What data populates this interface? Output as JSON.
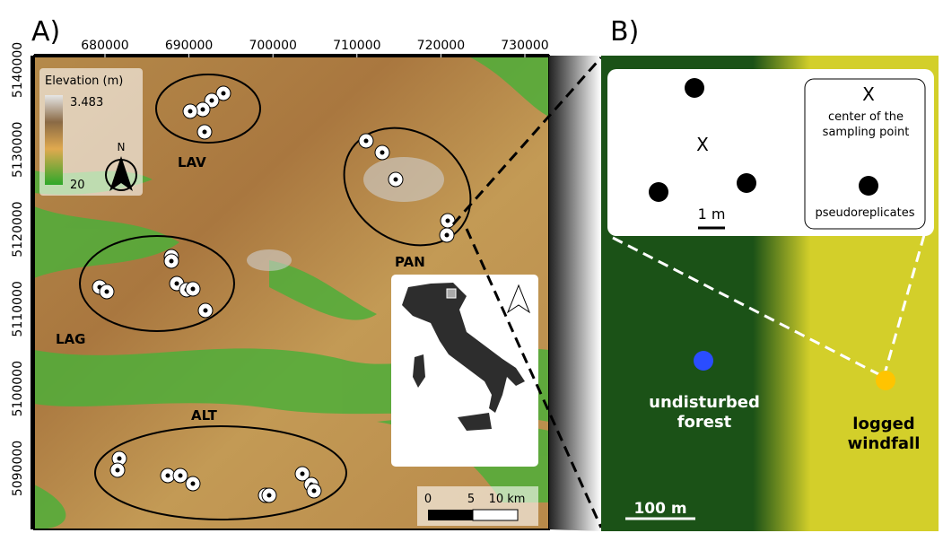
{
  "panel_a": {
    "label": "A)",
    "x_ticks": [
      "680000",
      "690000",
      "700000",
      "710000",
      "720000",
      "730000"
    ],
    "y_ticks": [
      "5140000",
      "5130000",
      "5120000",
      "5110000",
      "5100000",
      "5090000"
    ],
    "legend": {
      "title": "Elevation (m)",
      "max": "3.483",
      "min": "20",
      "north": "N"
    },
    "sites": [
      "LAV",
      "PAN",
      "LAG",
      "ALT"
    ],
    "scale_bar": [
      "0",
      "5",
      "10 km"
    ]
  },
  "panel_b": {
    "label": "B)",
    "inset": {
      "center_symbol": "X",
      "legend_symbol": "X",
      "center_label": "center of the sampling point",
      "replicates_label": "pseudoreplicates",
      "scale": "1 m"
    },
    "undisturbed": "undisturbed forest",
    "logged": "logged windfall",
    "scale": "100 m"
  }
}
